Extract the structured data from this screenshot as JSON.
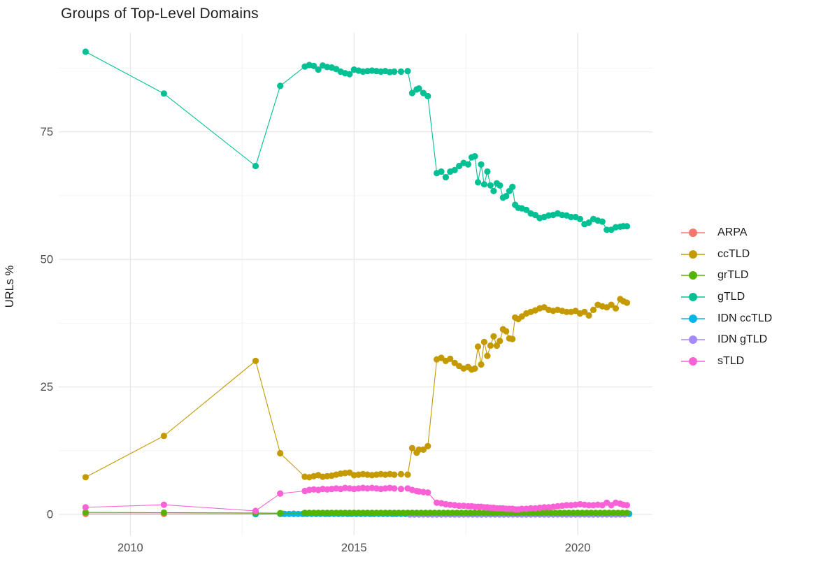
{
  "chart_data": {
    "type": "line",
    "title": "Groups of Top-Level Domains",
    "xlabel": "",
    "ylabel": "URLs %",
    "x_ticks": [
      2010,
      2015,
      2020
    ],
    "x_tick_labels": [
      "2010",
      "2015",
      "2020"
    ],
    "x_minor_ticks": [
      2012.5,
      2017.5
    ],
    "y_ticks": [
      0,
      25,
      50,
      75
    ],
    "y_tick_labels": [
      "0",
      "25",
      "50",
      "75"
    ],
    "y_minor_ticks": [
      12.5,
      37.5,
      62.5,
      87.5
    ],
    "xlim": [
      2008.4,
      2021.67
    ],
    "ylim": [
      -4.1,
      94.4
    ],
    "grid": "major+minor",
    "legend_position": "right",
    "legend": [
      "ARPA",
      "ccTLD",
      "grTLD",
      "gTLD",
      "IDN ccTLD",
      "IDN gTLD",
      "sTLD"
    ],
    "palette": {
      "ARPA": "#F8766D",
      "ccTLD": "#C49A00",
      "grTLD": "#53B400",
      "gTLD": "#00C094",
      "IDN ccTLD": "#00B6EB",
      "IDN gTLD": "#A58AFF",
      "sTLD": "#FB61D7"
    },
    "series": [
      {
        "name": "ARPA",
        "points": [
          [
            2009.0,
            0.1
          ],
          [
            2010.75,
            0.1
          ],
          [
            2012.8,
            0.1
          ]
        ],
        "flat": {
          "from": 2013.4,
          "to": 2021.1,
          "step": 0.25,
          "value": 0.15
        }
      },
      {
        "name": "IDN ccTLD",
        "points": [
          [
            2012.8,
            0.05
          ]
        ],
        "flat": {
          "from": 2013.35,
          "to": 2021.1,
          "step": 0.1,
          "value": 0.1
        }
      },
      {
        "name": "IDN gTLD",
        "points": [],
        "flat": {
          "from": 2016.25,
          "to": 2021.1,
          "step": 0.1,
          "value": 0.0
        }
      },
      {
        "name": "grTLD",
        "points": [
          [
            2009.0,
            0.4
          ],
          [
            2010.75,
            0.35
          ],
          [
            2012.8,
            0.3
          ],
          [
            2013.35,
            0.25
          ]
        ],
        "flat": {
          "from": 2013.9,
          "to": 2021.1,
          "step": 0.1,
          "value": 0.3
        }
      },
      {
        "name": "ccTLD",
        "points": [
          [
            2009.0,
            7.3
          ],
          [
            2010.75,
            15.4
          ],
          [
            2012.8,
            30.1
          ],
          [
            2013.35,
            12.0
          ],
          [
            2013.9,
            7.4
          ],
          [
            2014.0,
            7.3
          ],
          [
            2014.1,
            7.5
          ],
          [
            2014.2,
            7.7
          ],
          [
            2014.3,
            7.4
          ],
          [
            2014.4,
            7.5
          ],
          [
            2014.5,
            7.6
          ],
          [
            2014.6,
            7.8
          ],
          [
            2014.7,
            8.0
          ],
          [
            2014.8,
            8.1
          ],
          [
            2014.9,
            8.2
          ],
          [
            2015.0,
            7.7
          ],
          [
            2015.1,
            7.8
          ],
          [
            2015.2,
            7.9
          ],
          [
            2015.3,
            7.8
          ],
          [
            2015.4,
            7.7
          ],
          [
            2015.5,
            7.8
          ],
          [
            2015.6,
            7.9
          ],
          [
            2015.7,
            7.8
          ],
          [
            2015.8,
            7.9
          ],
          [
            2015.9,
            7.8
          ],
          [
            2016.05,
            7.9
          ],
          [
            2016.2,
            7.8
          ],
          [
            2016.3,
            13.0
          ],
          [
            2016.4,
            12.1
          ],
          [
            2016.45,
            12.7
          ],
          [
            2016.55,
            12.7
          ],
          [
            2016.65,
            13.4
          ],
          [
            2016.85,
            30.4
          ],
          [
            2016.95,
            30.7
          ],
          [
            2017.05,
            30.1
          ],
          [
            2017.15,
            30.5
          ],
          [
            2017.25,
            29.7
          ],
          [
            2017.35,
            29.1
          ],
          [
            2017.45,
            28.6
          ],
          [
            2017.55,
            28.9
          ],
          [
            2017.63,
            28.4
          ],
          [
            2017.7,
            28.6
          ],
          [
            2017.77,
            32.9
          ],
          [
            2017.84,
            29.4
          ],
          [
            2017.91,
            33.8
          ],
          [
            2017.98,
            31.1
          ],
          [
            2018.05,
            33.1
          ],
          [
            2018.12,
            34.9
          ],
          [
            2018.19,
            33.1
          ],
          [
            2018.26,
            34.0
          ],
          [
            2018.33,
            36.3
          ],
          [
            2018.4,
            35.9
          ],
          [
            2018.47,
            34.5
          ],
          [
            2018.54,
            34.4
          ],
          [
            2018.6,
            38.6
          ],
          [
            2018.67,
            38.3
          ],
          [
            2018.75,
            38.8
          ],
          [
            2018.85,
            39.4
          ],
          [
            2018.95,
            39.7
          ],
          [
            2019.05,
            40.0
          ],
          [
            2019.15,
            40.4
          ],
          [
            2019.25,
            40.6
          ],
          [
            2019.35,
            40.1
          ],
          [
            2019.45,
            39.9
          ],
          [
            2019.55,
            40.1
          ],
          [
            2019.65,
            39.9
          ],
          [
            2019.75,
            39.7
          ],
          [
            2019.85,
            39.7
          ],
          [
            2019.95,
            39.9
          ],
          [
            2020.05,
            39.4
          ],
          [
            2020.15,
            39.7
          ],
          [
            2020.25,
            39.0
          ],
          [
            2020.35,
            40.1
          ],
          [
            2020.45,
            41.1
          ],
          [
            2020.55,
            40.8
          ],
          [
            2020.65,
            40.6
          ],
          [
            2020.75,
            41.1
          ],
          [
            2020.85,
            40.4
          ],
          [
            2020.95,
            42.2
          ],
          [
            2021.02,
            41.8
          ],
          [
            2021.1,
            41.5
          ]
        ]
      },
      {
        "name": "gTLD",
        "points": [
          [
            2009.0,
            90.7
          ],
          [
            2010.75,
            82.5
          ],
          [
            2012.8,
            68.3
          ],
          [
            2013.35,
            84.0
          ],
          [
            2013.9,
            87.8
          ],
          [
            2014.0,
            88.1
          ],
          [
            2014.1,
            87.9
          ],
          [
            2014.2,
            87.2
          ],
          [
            2014.3,
            88.0
          ],
          [
            2014.4,
            87.7
          ],
          [
            2014.5,
            87.6
          ],
          [
            2014.6,
            87.3
          ],
          [
            2014.7,
            86.8
          ],
          [
            2014.8,
            86.5
          ],
          [
            2014.9,
            86.3
          ],
          [
            2015.0,
            87.2
          ],
          [
            2015.1,
            87.0
          ],
          [
            2015.2,
            86.8
          ],
          [
            2015.3,
            86.9
          ],
          [
            2015.4,
            87.0
          ],
          [
            2015.5,
            86.9
          ],
          [
            2015.6,
            86.8
          ],
          [
            2015.7,
            86.9
          ],
          [
            2015.8,
            86.7
          ],
          [
            2015.9,
            86.8
          ],
          [
            2016.05,
            86.8
          ],
          [
            2016.2,
            86.9
          ],
          [
            2016.3,
            82.6
          ],
          [
            2016.4,
            83.3
          ],
          [
            2016.45,
            83.5
          ],
          [
            2016.55,
            82.6
          ],
          [
            2016.65,
            82.0
          ],
          [
            2016.85,
            66.9
          ],
          [
            2016.95,
            67.2
          ],
          [
            2017.05,
            66.1
          ],
          [
            2017.15,
            67.2
          ],
          [
            2017.25,
            67.5
          ],
          [
            2017.35,
            68.3
          ],
          [
            2017.45,
            68.9
          ],
          [
            2017.55,
            68.6
          ],
          [
            2017.63,
            70.0
          ],
          [
            2017.7,
            70.2
          ],
          [
            2017.77,
            65.1
          ],
          [
            2017.84,
            68.6
          ],
          [
            2017.91,
            64.7
          ],
          [
            2017.98,
            67.2
          ],
          [
            2018.05,
            64.5
          ],
          [
            2018.12,
            63.4
          ],
          [
            2018.19,
            64.9
          ],
          [
            2018.26,
            64.5
          ],
          [
            2018.33,
            62.1
          ],
          [
            2018.4,
            62.4
          ],
          [
            2018.47,
            63.4
          ],
          [
            2018.54,
            64.2
          ],
          [
            2018.6,
            60.7
          ],
          [
            2018.67,
            60.1
          ],
          [
            2018.75,
            60.0
          ],
          [
            2018.85,
            59.7
          ],
          [
            2018.95,
            59.0
          ],
          [
            2019.05,
            58.7
          ],
          [
            2019.15,
            58.1
          ],
          [
            2019.25,
            58.3
          ],
          [
            2019.35,
            58.6
          ],
          [
            2019.45,
            58.7
          ],
          [
            2019.55,
            59.0
          ],
          [
            2019.65,
            58.7
          ],
          [
            2019.75,
            58.6
          ],
          [
            2019.85,
            58.3
          ],
          [
            2019.95,
            58.3
          ],
          [
            2020.05,
            57.9
          ],
          [
            2020.15,
            56.9
          ],
          [
            2020.25,
            57.2
          ],
          [
            2020.35,
            57.9
          ],
          [
            2020.45,
            57.6
          ],
          [
            2020.55,
            57.4
          ],
          [
            2020.65,
            55.8
          ],
          [
            2020.75,
            55.8
          ],
          [
            2020.85,
            56.3
          ],
          [
            2020.95,
            56.4
          ],
          [
            2021.02,
            56.5
          ],
          [
            2021.1,
            56.5
          ]
        ]
      },
      {
        "name": "sTLD",
        "points": [
          [
            2009.0,
            1.4
          ],
          [
            2010.75,
            1.9
          ],
          [
            2012.8,
            0.7
          ],
          [
            2013.35,
            4.1
          ],
          [
            2013.9,
            4.6
          ],
          [
            2014.0,
            4.8
          ],
          [
            2014.1,
            4.9
          ],
          [
            2014.2,
            4.8
          ],
          [
            2014.3,
            5.0
          ],
          [
            2014.4,
            4.9
          ],
          [
            2014.5,
            5.0
          ],
          [
            2014.6,
            5.1
          ],
          [
            2014.7,
            5.0
          ],
          [
            2014.8,
            5.2
          ],
          [
            2014.9,
            5.1
          ],
          [
            2015.0,
            5.0
          ],
          [
            2015.1,
            5.1
          ],
          [
            2015.2,
            5.2
          ],
          [
            2015.3,
            5.1
          ],
          [
            2015.4,
            5.2
          ],
          [
            2015.5,
            5.1
          ],
          [
            2015.6,
            5.0
          ],
          [
            2015.7,
            5.1
          ],
          [
            2015.8,
            5.2
          ],
          [
            2015.9,
            5.1
          ],
          [
            2016.05,
            5.0
          ],
          [
            2016.2,
            5.1
          ],
          [
            2016.3,
            4.8
          ],
          [
            2016.4,
            4.6
          ],
          [
            2016.45,
            4.5
          ],
          [
            2016.55,
            4.4
          ],
          [
            2016.65,
            4.3
          ],
          [
            2016.85,
            2.3
          ],
          [
            2016.95,
            2.2
          ],
          [
            2017.05,
            2.0
          ],
          [
            2017.15,
            1.9
          ],
          [
            2017.25,
            1.8
          ],
          [
            2017.35,
            1.7
          ],
          [
            2017.45,
            1.7
          ],
          [
            2017.55,
            1.6
          ],
          [
            2017.63,
            1.6
          ],
          [
            2017.7,
            1.5
          ],
          [
            2017.77,
            1.5
          ],
          [
            2017.84,
            1.5
          ],
          [
            2017.91,
            1.4
          ],
          [
            2017.98,
            1.4
          ],
          [
            2018.05,
            1.3
          ],
          [
            2018.12,
            1.3
          ],
          [
            2018.19,
            1.2
          ],
          [
            2018.26,
            1.2
          ],
          [
            2018.33,
            1.2
          ],
          [
            2018.4,
            1.1
          ],
          [
            2018.47,
            1.1
          ],
          [
            2018.54,
            1.1
          ],
          [
            2018.6,
            1.0
          ],
          [
            2018.67,
            1.0
          ],
          [
            2018.75,
            1.1
          ],
          [
            2018.85,
            1.1
          ],
          [
            2018.95,
            1.2
          ],
          [
            2019.05,
            1.2
          ],
          [
            2019.15,
            1.3
          ],
          [
            2019.25,
            1.4
          ],
          [
            2019.35,
            1.4
          ],
          [
            2019.45,
            1.5
          ],
          [
            2019.55,
            1.6
          ],
          [
            2019.65,
            1.7
          ],
          [
            2019.75,
            1.8
          ],
          [
            2019.85,
            1.8
          ],
          [
            2019.95,
            1.9
          ],
          [
            2020.05,
            2.0
          ],
          [
            2020.15,
            1.9
          ],
          [
            2020.25,
            1.8
          ],
          [
            2020.35,
            1.8
          ],
          [
            2020.45,
            1.9
          ],
          [
            2020.55,
            1.8
          ],
          [
            2020.65,
            2.3
          ],
          [
            2020.75,
            1.8
          ],
          [
            2020.85,
            2.3
          ],
          [
            2020.95,
            2.1
          ],
          [
            2021.02,
            1.9
          ],
          [
            2021.1,
            1.8
          ]
        ]
      }
    ]
  }
}
